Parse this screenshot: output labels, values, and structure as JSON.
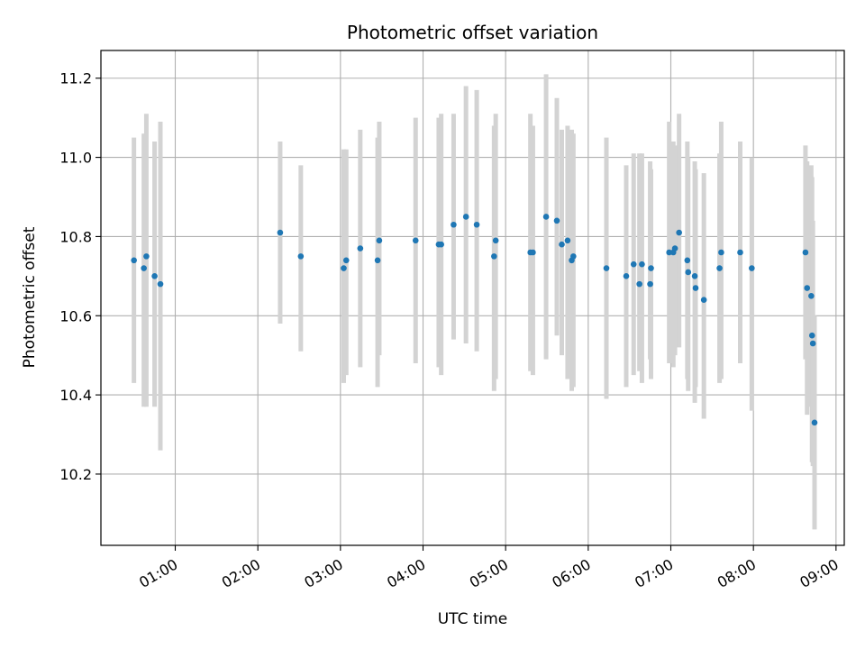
{
  "chart_data": {
    "type": "scatter",
    "title": "Photometric offset variation",
    "xlabel": "UTC time",
    "ylabel": "Photometric offset",
    "x_unit": "hours UTC",
    "xlim": [
      0.1,
      9.1
    ],
    "ylim": [
      10.02,
      11.27
    ],
    "grid": true,
    "x_ticks": [
      {
        "value": 1,
        "label": "01:00"
      },
      {
        "value": 2,
        "label": "02:00"
      },
      {
        "value": 3,
        "label": "03:00"
      },
      {
        "value": 4,
        "label": "04:00"
      },
      {
        "value": 5,
        "label": "05:00"
      },
      {
        "value": 6,
        "label": "06:00"
      },
      {
        "value": 7,
        "label": "07:00"
      },
      {
        "value": 8,
        "label": "08:00"
      },
      {
        "value": 9,
        "label": "09:00"
      }
    ],
    "y_ticks": [
      {
        "value": 10.2,
        "label": "10.2"
      },
      {
        "value": 10.4,
        "label": "10.4"
      },
      {
        "value": 10.6,
        "label": "10.6"
      },
      {
        "value": 10.8,
        "label": "10.8"
      },
      {
        "value": 11.0,
        "label": "11.0"
      },
      {
        "value": 11.2,
        "label": "11.2"
      }
    ],
    "colors": {
      "points": "#1f77b4",
      "errorbars": "#d3d3d3",
      "grid": "#b0b0b0",
      "axes": "#000000"
    },
    "series": [
      {
        "name": "offset",
        "x": [
          0.5,
          0.62,
          0.65,
          0.75,
          0.82,
          2.27,
          2.52,
          3.04,
          3.07,
          3.24,
          3.45,
          3.47,
          3.91,
          4.19,
          4.22,
          4.37,
          4.52,
          4.65,
          4.86,
          4.88,
          5.3,
          5.33,
          5.49,
          5.62,
          5.68,
          5.75,
          5.8,
          5.82,
          6.22,
          6.46,
          6.55,
          6.62,
          6.65,
          6.75,
          6.76,
          6.98,
          7.03,
          7.05,
          7.1,
          7.2,
          7.21,
          7.29,
          7.3,
          7.4,
          7.59,
          7.61,
          7.84,
          7.98,
          8.63,
          8.65,
          8.7,
          8.71,
          8.72,
          8.74
        ],
        "y": [
          10.74,
          10.72,
          10.75,
          10.7,
          10.68,
          10.81,
          10.75,
          10.72,
          10.74,
          10.77,
          10.74,
          10.79,
          10.79,
          10.78,
          10.78,
          10.83,
          10.85,
          10.83,
          10.75,
          10.79,
          10.76,
          10.76,
          10.85,
          10.84,
          10.78,
          10.79,
          10.74,
          10.75,
          10.72,
          10.7,
          10.73,
          10.68,
          10.73,
          10.68,
          10.72,
          10.76,
          10.76,
          10.77,
          10.81,
          10.74,
          10.71,
          10.7,
          10.67,
          10.64,
          10.72,
          10.76,
          10.76,
          10.72,
          10.76,
          10.67,
          10.65,
          10.55,
          10.53,
          10.33
        ],
        "err_low": [
          10.43,
          10.37,
          10.37,
          10.37,
          10.26,
          10.58,
          10.51,
          10.43,
          10.45,
          10.47,
          10.42,
          10.5,
          10.48,
          10.47,
          10.45,
          10.54,
          10.53,
          10.51,
          10.41,
          10.44,
          10.46,
          10.45,
          10.49,
          10.55,
          10.5,
          10.44,
          10.41,
          10.42,
          10.39,
          10.42,
          10.45,
          10.46,
          10.43,
          10.49,
          10.44,
          10.48,
          10.47,
          10.5,
          10.52,
          10.44,
          10.41,
          10.38,
          10.42,
          10.34,
          10.43,
          10.44,
          10.48,
          10.36,
          10.49,
          10.35,
          10.37,
          10.23,
          10.22,
          10.06
        ],
        "err_high": [
          11.05,
          11.06,
          11.11,
          11.04,
          11.09,
          11.04,
          10.98,
          11.02,
          11.02,
          11.07,
          11.05,
          11.09,
          11.1,
          11.1,
          11.11,
          11.11,
          11.18,
          11.17,
          11.08,
          11.11,
          11.11,
          11.08,
          11.21,
          11.15,
          11.07,
          11.08,
          11.07,
          11.06,
          11.05,
          10.98,
          11.01,
          11.01,
          11.01,
          10.99,
          10.97,
          11.09,
          11.04,
          11.03,
          11.11,
          11.04,
          11.0,
          10.99,
          10.97,
          10.96,
          11.01,
          11.09,
          11.04,
          11.0,
          11.03,
          10.99,
          10.98,
          10.95,
          10.84,
          10.6
        ]
      }
    ]
  }
}
